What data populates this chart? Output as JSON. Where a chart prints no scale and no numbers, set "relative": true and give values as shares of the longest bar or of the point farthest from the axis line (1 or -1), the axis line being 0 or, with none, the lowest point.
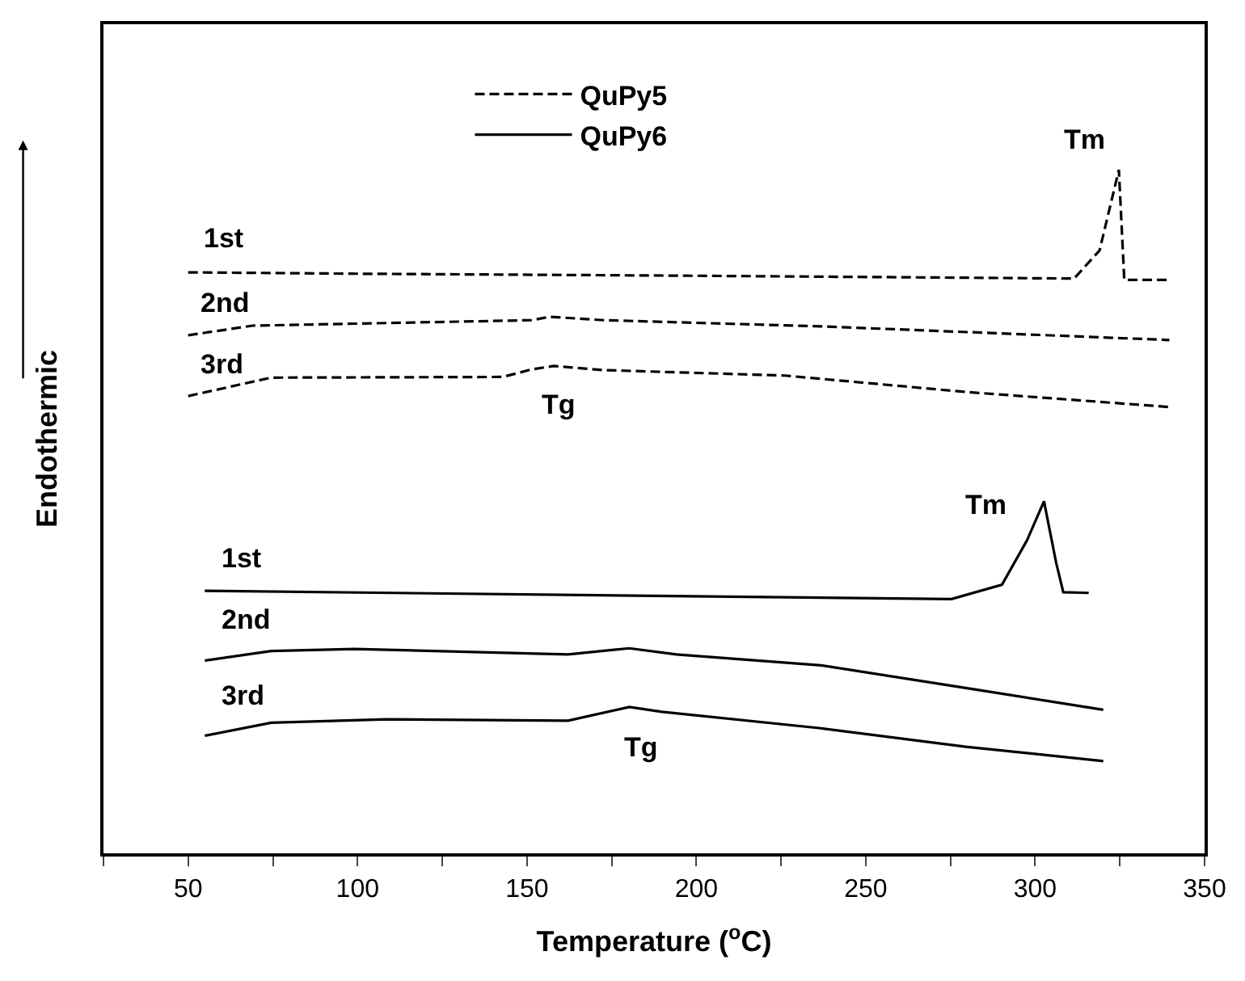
{
  "chart_data": {
    "type": "line",
    "relative": true,
    "xlabel": "Temperature ($^{o}$C)",
    "ylabel": "Endothermic",
    "xlim": [
      25,
      350
    ],
    "xticks": [
      {
        "value": 25,
        "label": null
      },
      50,
      {
        "value": 75,
        "label": null
      },
      100,
      {
        "value": 125,
        "label": null
      },
      150,
      {
        "value": 175,
        "label": null
      },
      200,
      {
        "value": 225,
        "label": null
      },
      250,
      {
        "value": 275,
        "label": null
      },
      300,
      {
        "value": 325,
        "label": null
      },
      350
    ],
    "tick_labels": "x",
    "legend": "top",
    "marker": "none",
    "series": [
      {
        "name": "QuPy5",
        "color": "#000000",
        "line_style": "dashed",
        "x": [
          50,
          100,
          200,
          311.5,
          319,
          324.7,
          326.3,
          339.6
        ],
        "values": [
          0.85,
          0.848,
          0.845,
          0.841,
          0.882,
          1.0,
          0.839,
          0.839
        ]
      },
      {
        "color": "#000000",
        "line_style": "dashed",
        "x": [
          50,
          69,
          151.4,
          156.7,
          172.7,
          236.8,
          339.6
        ],
        "values": [
          0.758,
          0.772,
          0.78,
          0.785,
          0.78,
          0.771,
          0.751
        ]
      },
      {
        "color": "#000000",
        "line_style": "dashed",
        "x": [
          50,
          74.5,
          142.9,
          151.4,
          157.9,
          172.7,
          226.1,
          279.5,
          339.6
        ],
        "values": [
          0.669,
          0.696,
          0.697,
          0.708,
          0.713,
          0.707,
          0.699,
          0.675,
          0.653
        ]
      },
      {
        "name": "QuPy6",
        "color": "#000000",
        "line_style": "solid",
        "x": [
          54.9,
          275.3,
          290.2,
          297.6,
          302.6,
          306.2,
          308.3,
          315.8
        ],
        "values": [
          0.384,
          0.372,
          0.393,
          0.458,
          0.515,
          0.425,
          0.382,
          0.381
        ]
      },
      {
        "color": "#000000",
        "line_style": "solid",
        "x": [
          54.9,
          74.5,
          99.1,
          162.1,
          180.2,
          194.1,
          236.8,
          279.5,
          320.1
        ],
        "values": [
          0.282,
          0.296,
          0.299,
          0.291,
          0.3,
          0.291,
          0.275,
          0.242,
          0.21
        ]
      },
      {
        "color": "#000000",
        "line_style": "solid",
        "x": [
          54.9,
          74.5,
          108.7,
          162.1,
          180.2,
          189.8,
          236.8,
          279.5,
          320.1
        ],
        "values": [
          0.172,
          0.191,
          0.196,
          0.194,
          0.214,
          0.207,
          0.183,
          0.156,
          0.135
        ]
      }
    ],
    "annotations": [
      "1st",
      "2nd",
      "3rd",
      "Tm",
      "Tg",
      "1st",
      "2nd",
      "3rd",
      "Tm",
      "Tg"
    ]
  }
}
